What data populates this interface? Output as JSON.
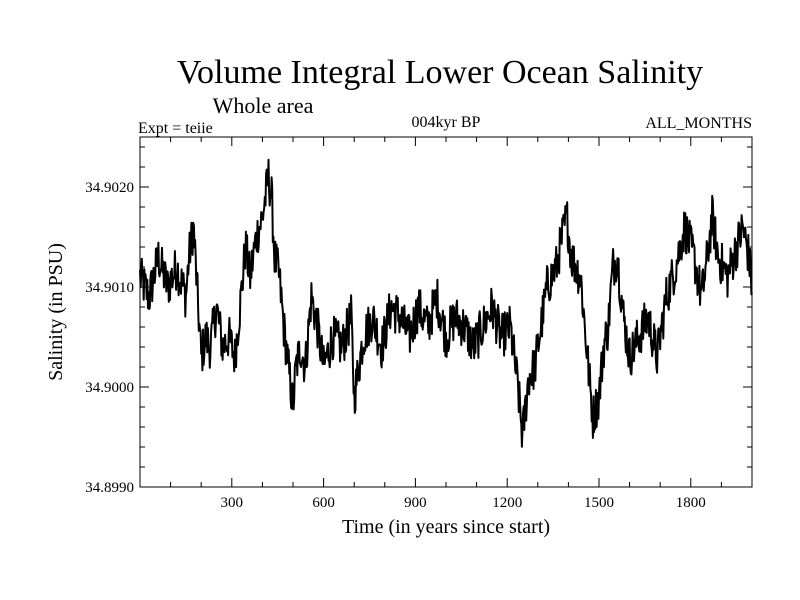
{
  "chart_data": {
    "type": "line",
    "title": "Volume Integral Lower Ocean Salinity",
    "subtitle": "Whole area",
    "experiment": "Expt = teiie",
    "period": "004kyr BP",
    "months": "ALL_MONTHS",
    "xlabel": "Time (in years since start)",
    "ylabel": "Salinity (in PSU)",
    "xlim": [
      0,
      2000
    ],
    "ylim": [
      34.899,
      34.9025
    ],
    "xticks": [
      300,
      600,
      900,
      1200,
      1500,
      1800
    ],
    "xtick_labels": [
      "300",
      "600",
      "900",
      "1200",
      "1500",
      "1800"
    ],
    "yticks": [
      34.899,
      34.9,
      34.901,
      34.902
    ],
    "ytick_labels": [
      "34.8990",
      "34.9000",
      "34.9010",
      "34.9020"
    ],
    "grid": false,
    "series": [
      {
        "name": "salinity",
        "color": "#000000",
        "x": [
          0,
          30,
          60,
          90,
          120,
          150,
          160,
          175,
          190,
          200,
          215,
          230,
          250,
          270,
          290,
          310,
          330,
          345,
          360,
          380,
          400,
          420,
          430,
          440,
          455,
          470,
          485,
          500,
          510,
          525,
          540,
          560,
          580,
          600,
          630,
          660,
          690,
          700,
          730,
          760,
          790,
          820,
          850,
          880,
          910,
          940,
          970,
          1000,
          1030,
          1060,
          1090,
          1120,
          1150,
          1180,
          1210,
          1235,
          1250,
          1270,
          1290,
          1310,
          1330,
          1360,
          1380,
          1395,
          1410,
          1440,
          1465,
          1480,
          1500,
          1515,
          1530,
          1545,
          1560,
          1580,
          1600,
          1630,
          1660,
          1690,
          1720,
          1750,
          1780,
          1810,
          1835,
          1850,
          1870,
          1890,
          1920,
          1950,
          1970,
          1990,
          2000
        ],
        "y": [
          34.9011,
          34.9009,
          34.9013,
          34.901,
          34.9012,
          34.9009,
          34.9013,
          34.9016,
          34.9008,
          34.9003,
          34.9005,
          34.9004,
          34.9008,
          34.9004,
          34.9005,
          34.9003,
          34.9009,
          34.9014,
          34.9011,
          34.9015,
          34.9017,
          34.9021,
          34.9019,
          34.9013,
          34.9011,
          34.9006,
          34.9002,
          34.8998,
          34.9002,
          34.9004,
          34.9002,
          34.9009,
          34.9006,
          34.9002,
          34.9005,
          34.9004,
          34.9007,
          34.8999,
          34.9005,
          34.9007,
          34.9004,
          34.9008,
          34.9007,
          34.9005,
          34.9008,
          34.9006,
          34.9009,
          34.9005,
          34.9007,
          34.9006,
          34.9004,
          34.9006,
          34.9008,
          34.9005,
          34.9006,
          34.9,
          34.8995,
          34.9001,
          34.9002,
          34.9006,
          34.901,
          34.9012,
          34.9015,
          34.9017,
          34.9013,
          34.9011,
          34.9002,
          34.8997,
          34.8999,
          34.9004,
          34.9006,
          34.9012,
          34.9013,
          34.9007,
          34.9003,
          34.9005,
          34.9007,
          34.9003,
          34.9009,
          34.9012,
          34.9016,
          34.9013,
          34.9009,
          34.9012,
          34.9017,
          34.9013,
          34.9011,
          34.9014,
          34.9016,
          34.9013,
          34.901
        ]
      }
    ]
  }
}
